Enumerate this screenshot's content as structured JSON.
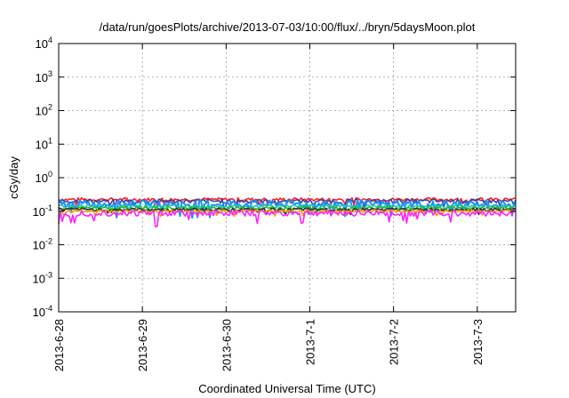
{
  "chart_data": {
    "type": "line",
    "title": "/data/run/goesPlots/archive/2013-07-03/10:00/flux/../bryn/5daysMoon.plot",
    "xlabel": "Coordinated Universal Time (UTC)",
    "ylabel": "cGy/day",
    "y_scale": "log",
    "ylim": [
      0.0001,
      10000
    ],
    "xlim": [
      "2013-06-28",
      "2013-07-03 11:00"
    ],
    "x_tick_labels": [
      "2013-6-28",
      "2013-6-29",
      "2013-6-30",
      "2013-7-1",
      "2013-7-2",
      "2013-7-3"
    ],
    "y_ticks": [
      {
        "base": "10",
        "exp": "-4"
      },
      {
        "base": "10",
        "exp": "-3"
      },
      {
        "base": "10",
        "exp": "-2"
      },
      {
        "base": "10",
        "exp": "-1"
      },
      {
        "base": "10",
        "exp": "0"
      },
      {
        "base": "10",
        "exp": "1"
      },
      {
        "base": "10",
        "exp": "2"
      },
      {
        "base": "10",
        "exp": "3"
      },
      {
        "base": "10",
        "exp": "4"
      }
    ],
    "grid": true,
    "series": [
      {
        "color": "#ff2020",
        "level": 0.225,
        "spread": 0.1
      },
      {
        "color": "#3f3fa0",
        "level": 0.2,
        "spread": 0.12
      },
      {
        "color": "#1a8cff",
        "level": 0.165,
        "spread": 0.22
      },
      {
        "color": "#20c0c0",
        "level": 0.145,
        "spread": 0.08
      },
      {
        "color": "#20c020",
        "level": 0.125,
        "spread": 0.08
      },
      {
        "color": "#303030",
        "level": 0.112,
        "spread": 0.08
      },
      {
        "color": "#ff9900",
        "level": 0.1,
        "spread": 0.08
      },
      {
        "color": "#ff20ff",
        "level": 0.088,
        "spread": 0.18
      }
    ]
  }
}
